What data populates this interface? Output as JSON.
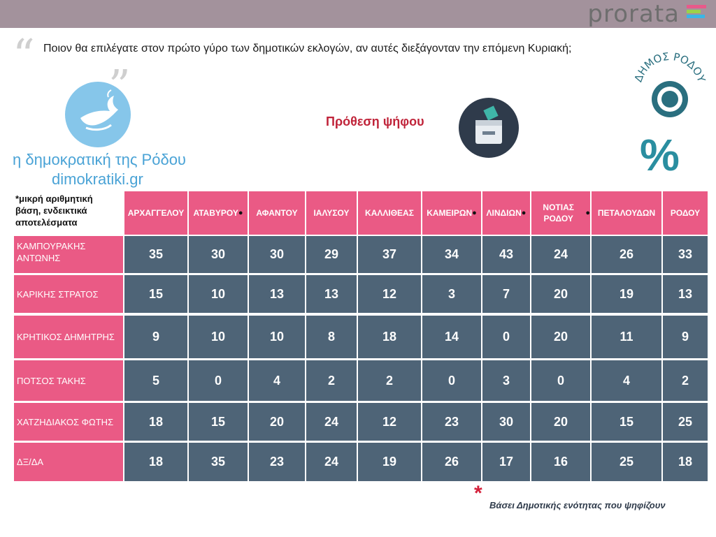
{
  "brand": {
    "name": "prorata"
  },
  "colors": {
    "header_bar": "#a3929c",
    "pink": "#ea5a85",
    "slate": "#4e6477",
    "title_red": "#c0243a"
  },
  "icons": {
    "dove": "dove-logo-icon",
    "ballot": "ballot-box-icon",
    "seal": "dimos-rodou-seal-icon",
    "percent": "percent-icon"
  },
  "question": "Ποιον θα επιλέγατε στον πρώτο γύρο των δημοτικών εκλογών, αν αυτές διεξάγονταν την επόμενη Κυριακή;",
  "section_title": "Πρόθεση ψήφου",
  "seal_text": "ΔΗΜΟΣ ΡΟΔΟΥ",
  "percent_symbol": "%",
  "watermark": {
    "line1": "η δημοκρατική της Ρόδου",
    "line2": "dimokratiki.gr"
  },
  "note": "*μικρή αριθμητική βάση, ενδεικτικά αποτελέσματα",
  "footer": {
    "star": "*",
    "text": "Βάσει Δημοτικής ενότητας που ψηφίζουν"
  },
  "chart_data": {
    "type": "table",
    "title": "Πρόθεση ψήφου",
    "unit": "%",
    "columns": [
      {
        "name": "ΑΡΧΑΓΓΕΛΟΥ",
        "starred": false
      },
      {
        "name": "ΑΤΑΒΥΡΟΥ",
        "starred": true
      },
      {
        "name": "ΑΦΑΝΤΟΥ",
        "starred": false
      },
      {
        "name": "ΙΑΛΥΣΟΥ",
        "starred": false
      },
      {
        "name": "ΚΑΛΛΙΘΕΑΣ",
        "starred": false
      },
      {
        "name": "ΚΑΜΕΙΡΩΝ",
        "starred": true
      },
      {
        "name": "ΛΙΝΔΙΩΝ",
        "starred": true
      },
      {
        "name": "ΝΟΤΙΑΣ ΡΟΔΟΥ",
        "starred": true
      },
      {
        "name": "ΠΕΤΑΛΟΥΔΩΝ",
        "starred": false
      },
      {
        "name": "ΡΟΔΟΥ",
        "starred": false
      }
    ],
    "rows": [
      {
        "name": "ΚΑΜΠΟΥΡΑΚΗΣ ΑΝΤΩΝΗΣ",
        "values": [
          35,
          30,
          30,
          29,
          37,
          34,
          43,
          24,
          26,
          33
        ]
      },
      {
        "name": "ΚΑΡΙΚΗΣ ΣΤΡΑΤΟΣ",
        "values": [
          15,
          10,
          13,
          13,
          12,
          3,
          7,
          20,
          19,
          13
        ]
      },
      {
        "name": "ΚΡΗΤΙΚΟΣ ΔΗΜΗΤΡΗΣ",
        "values": [
          9,
          10,
          10,
          8,
          18,
          14,
          0,
          20,
          11,
          9
        ]
      },
      {
        "name": "ΠΟΤΣΟΣ ΤΑΚΗΣ",
        "values": [
          5,
          0,
          4,
          2,
          2,
          0,
          3,
          0,
          4,
          2
        ]
      },
      {
        "name": "ΧΑΤΖΗΔΙΑΚΟΣ ΦΩΤΗΣ",
        "values": [
          18,
          15,
          20,
          24,
          12,
          23,
          30,
          20,
          15,
          25
        ]
      },
      {
        "name": "ΔΞ/ΔΑ",
        "values": [
          18,
          35,
          23,
          24,
          19,
          26,
          17,
          16,
          25,
          18
        ]
      }
    ]
  }
}
